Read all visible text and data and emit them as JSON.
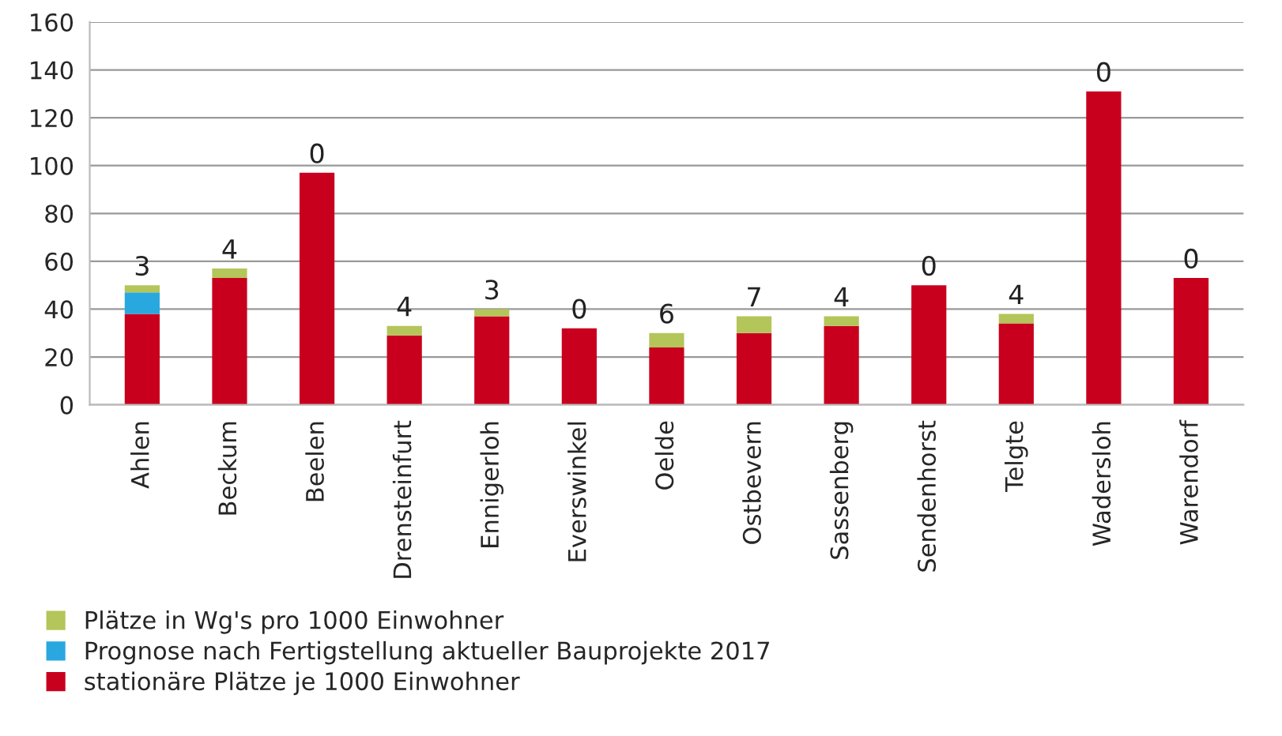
{
  "chart_data": {
    "type": "bar",
    "stacked": true,
    "categories": [
      "Ahlen",
      "Beckum",
      "Beelen",
      "Drensteinfurt",
      "Ennigerloh",
      "Everswinkel",
      "Oelde",
      "Ostbevern",
      "Sassenberg",
      "Sendenhorst",
      "Telgte",
      "Wadersloh",
      "Warendorf"
    ],
    "series": [
      {
        "name": "stationäre Plätze je 1000 Einwohner",
        "color": "#c8001e",
        "values": [
          38,
          53,
          97,
          29,
          37,
          32,
          24,
          30,
          33,
          50,
          34,
          131,
          53
        ]
      },
      {
        "name": "Prognose nach Fertigstellung aktueller Bauprojekte 2017",
        "color": "#29a8e0",
        "values": [
          9,
          0,
          0,
          0,
          0,
          0,
          0,
          0,
          0,
          0,
          0,
          0,
          0
        ]
      },
      {
        "name": "Plätze in Wg's pro 1000 Einwohner",
        "color": "#b4c55a",
        "values": [
          3,
          4,
          0,
          4,
          3,
          0,
          6,
          7,
          4,
          0,
          4,
          0,
          0
        ],
        "value_labels": [
          "3",
          "4",
          "0",
          "4",
          "3",
          "0",
          "6",
          "7",
          "4",
          "0",
          "4",
          "0",
          "0"
        ]
      }
    ],
    "ylim": [
      0,
      160
    ],
    "yticks": [
      0,
      20,
      40,
      60,
      80,
      100,
      120,
      140,
      160
    ],
    "grid": "y",
    "legend": "bottom"
  }
}
